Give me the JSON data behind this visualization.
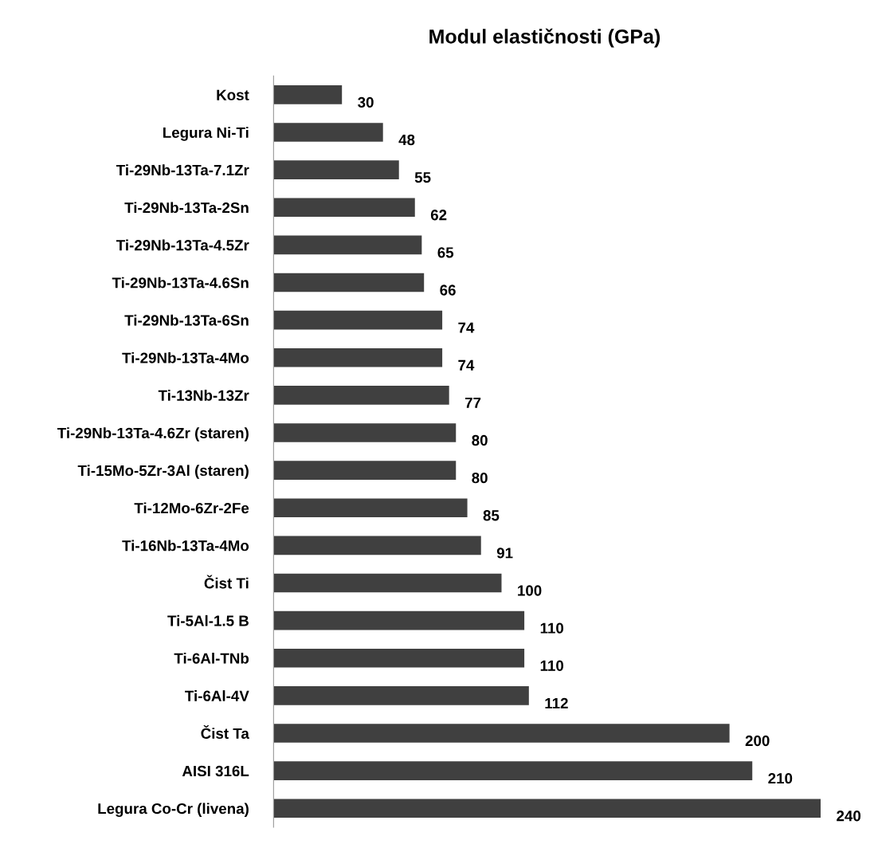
{
  "chart_data": {
    "type": "bar",
    "orientation": "horizontal",
    "title": "Modul elastičnosti (GPa)",
    "categories": [
      "Kost",
      "Legura Ni-Ti",
      "Ti-29Nb-13Ta-7.1Zr",
      "Ti-29Nb-13Ta-2Sn",
      "Ti-29Nb-13Ta-4.5Zr",
      "Ti-29Nb-13Ta-4.6Sn",
      "Ti-29Nb-13Ta-6Sn",
      "Ti-29Nb-13Ta-4Mo",
      "Ti-13Nb-13Zr",
      "Ti-29Nb-13Ta-4.6Zr (staren)",
      "Ti-15Mo-5Zr-3Al (staren)",
      "Ti-12Mo-6Zr-2Fe",
      "Ti-16Nb-13Ta-4Mo",
      "Čist Ti",
      "Ti-5Al-1.5 B",
      "Ti-6Al-TNb",
      "Ti-6Al-4V",
      "Čist Ta",
      "AISI 316L",
      "Legura Co-Cr (livena)"
    ],
    "values": [
      30,
      48,
      55,
      62,
      65,
      66,
      74,
      74,
      77,
      80,
      80,
      85,
      91,
      100,
      110,
      110,
      112,
      200,
      210,
      240
    ],
    "color": "#404040",
    "data_labels": true,
    "tick_labels": "y",
    "grid": false,
    "legend": false
  }
}
